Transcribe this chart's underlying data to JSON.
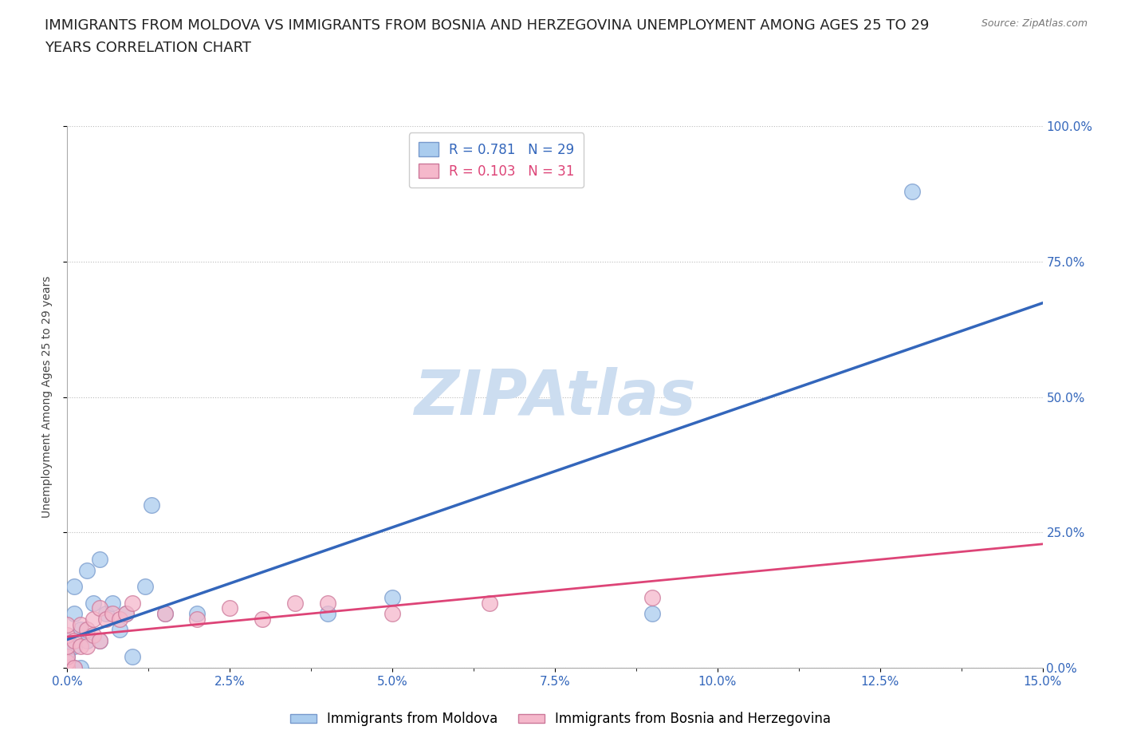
{
  "title_line1": "IMMIGRANTS FROM MOLDOVA VS IMMIGRANTS FROM BOSNIA AND HERZEGOVINA UNEMPLOYMENT AMONG AGES 25 TO 29",
  "title_line2": "YEARS CORRELATION CHART",
  "source_text": "Source: ZipAtlas.com",
  "ylabel": "Unemployment Among Ages 25 to 29 years",
  "xlim": [
    0.0,
    0.15
  ],
  "ylim": [
    0.0,
    1.0
  ],
  "xtick_labels": [
    "0.0%",
    "",
    "2.5%",
    "",
    "5.0%",
    "",
    "7.5%",
    "",
    "10.0%",
    "",
    "12.5%",
    "",
    "15.0%"
  ],
  "xtick_values": [
    0.0,
    0.0125,
    0.025,
    0.0375,
    0.05,
    0.0625,
    0.075,
    0.0875,
    0.1,
    0.1125,
    0.125,
    0.1375,
    0.15
  ],
  "ytick_labels": [
    "0.0%",
    "25.0%",
    "50.0%",
    "75.0%",
    "100.0%"
  ],
  "ytick_values": [
    0.0,
    0.25,
    0.5,
    0.75,
    1.0
  ],
  "moldova_color": "#aaccee",
  "moldova_edge_color": "#7799cc",
  "bosnia_color": "#f5b8cb",
  "bosnia_edge_color": "#cc7799",
  "line_moldova_color": "#3366bb",
  "line_bosnia_color": "#dd4477",
  "R_moldova": 0.781,
  "N_moldova": 29,
  "R_bosnia": 0.103,
  "N_bosnia": 31,
  "moldova_x": [
    0.0,
    0.0,
    0.0,
    0.0,
    0.0,
    0.001,
    0.001,
    0.001,
    0.001,
    0.002,
    0.002,
    0.003,
    0.003,
    0.004,
    0.005,
    0.005,
    0.006,
    0.007,
    0.008,
    0.009,
    0.01,
    0.012,
    0.013,
    0.015,
    0.02,
    0.04,
    0.05,
    0.09,
    0.13
  ],
  "moldova_y": [
    0.0,
    0.0,
    0.02,
    0.03,
    0.05,
    0.0,
    0.04,
    0.1,
    0.15,
    0.0,
    0.07,
    0.05,
    0.18,
    0.12,
    0.05,
    0.2,
    0.1,
    0.12,
    0.07,
    0.1,
    0.02,
    0.15,
    0.3,
    0.1,
    0.1,
    0.1,
    0.13,
    0.1,
    0.88
  ],
  "bosnia_x": [
    0.0,
    0.0,
    0.0,
    0.0,
    0.0,
    0.0,
    0.0,
    0.001,
    0.001,
    0.002,
    0.002,
    0.003,
    0.003,
    0.004,
    0.004,
    0.005,
    0.005,
    0.006,
    0.007,
    0.008,
    0.009,
    0.01,
    0.015,
    0.02,
    0.025,
    0.03,
    0.035,
    0.04,
    0.05,
    0.065,
    0.09
  ],
  "bosnia_y": [
    0.0,
    0.0,
    0.01,
    0.02,
    0.04,
    0.06,
    0.08,
    0.0,
    0.05,
    0.04,
    0.08,
    0.04,
    0.07,
    0.06,
    0.09,
    0.05,
    0.11,
    0.09,
    0.1,
    0.09,
    0.1,
    0.12,
    0.1,
    0.09,
    0.11,
    0.09,
    0.12,
    0.12,
    0.1,
    0.12,
    0.13
  ],
  "watermark": "ZIPAtlas",
  "watermark_color": "#ccddf0",
  "title_fontsize": 13,
  "axis_label_fontsize": 10,
  "tick_fontsize": 11,
  "legend_fontsize": 12,
  "background_color": "#ffffff",
  "grid_color": "#bbbbbb",
  "legend_moldova": "Immigrants from Moldova",
  "legend_bosnia": "Immigrants from Bosnia and Herzegovina"
}
